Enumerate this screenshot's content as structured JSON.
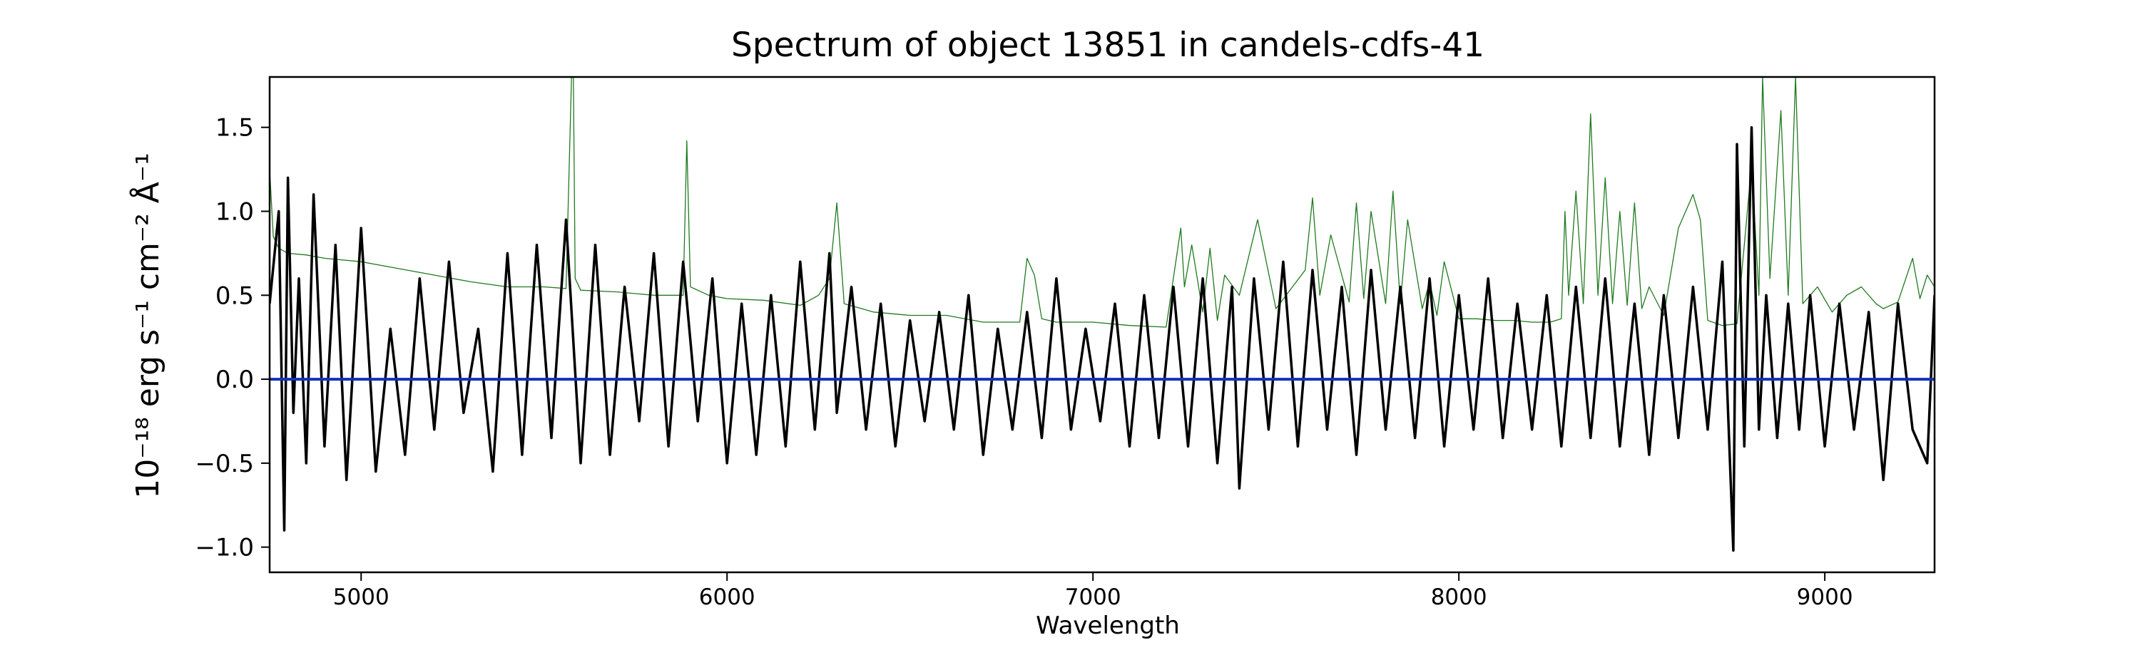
{
  "chart_data": {
    "type": "line",
    "title": "Spectrum of object 13851 in candels-cdfs-41",
    "xlabel": "Wavelength",
    "ylabel": "10⁻¹⁸ erg s⁻¹ cm⁻² Å⁻¹",
    "xlim": [
      4750,
      9300
    ],
    "ylim": [
      -1.15,
      1.8
    ],
    "x_ticks": [
      5000,
      6000,
      7000,
      8000,
      9000
    ],
    "y_ticks": [
      -1.0,
      -0.5,
      0.0,
      0.5,
      1.0,
      1.5
    ],
    "x_tick_labels": [
      "5000",
      "6000",
      "7000",
      "8000",
      "9000"
    ],
    "y_tick_labels": [
      "−1.0",
      "−0.5",
      "0.0",
      "0.5",
      "1.0",
      "1.5"
    ],
    "grid": false,
    "series": [
      {
        "role": "flux",
        "color": "#000000",
        "x": [
          4750,
          4775,
          4790,
          4800,
          4815,
          4830,
          4850,
          4870,
          4900,
          4930,
          4960,
          5000,
          5040,
          5080,
          5120,
          5160,
          5200,
          5240,
          5280,
          5320,
          5360,
          5400,
          5440,
          5480,
          5520,
          5560,
          5600,
          5640,
          5680,
          5720,
          5760,
          5800,
          5840,
          5880,
          5920,
          5960,
          6000,
          6040,
          6080,
          6120,
          6160,
          6200,
          6240,
          6280,
          6300,
          6340,
          6380,
          6420,
          6460,
          6500,
          6540,
          6580,
          6620,
          6660,
          6700,
          6740,
          6780,
          6820,
          6860,
          6900,
          6940,
          6980,
          7020,
          7060,
          7100,
          7140,
          7180,
          7220,
          7260,
          7300,
          7340,
          7380,
          7400,
          7440,
          7480,
          7520,
          7560,
          7600,
          7640,
          7680,
          7720,
          7760,
          7800,
          7840,
          7880,
          7920,
          7960,
          8000,
          8040,
          8080,
          8120,
          8160,
          8200,
          8240,
          8280,
          8320,
          8360,
          8400,
          8440,
          8480,
          8520,
          8560,
          8600,
          8640,
          8680,
          8720,
          8750,
          8760,
          8780,
          8800,
          8820,
          8840,
          8870,
          8900,
          8930,
          8960,
          9000,
          9040,
          9080,
          9120,
          9160,
          9200,
          9240,
          9280,
          9300
        ],
        "y": [
          0.45,
          1.0,
          -0.9,
          1.2,
          -0.2,
          0.6,
          -0.5,
          1.1,
          -0.4,
          0.8,
          -0.6,
          0.9,
          -0.55,
          0.3,
          -0.45,
          0.6,
          -0.3,
          0.7,
          -0.2,
          0.3,
          -0.55,
          0.75,
          -0.45,
          0.8,
          -0.35,
          0.95,
          -0.5,
          0.8,
          -0.45,
          0.55,
          -0.25,
          0.75,
          -0.4,
          0.7,
          -0.25,
          0.6,
          -0.5,
          0.45,
          -0.45,
          0.5,
          -0.4,
          0.7,
          -0.3,
          0.75,
          -0.2,
          0.55,
          -0.3,
          0.45,
          -0.4,
          0.35,
          -0.25,
          0.4,
          -0.3,
          0.5,
          -0.45,
          0.3,
          -0.3,
          0.4,
          -0.35,
          0.6,
          -0.3,
          0.3,
          -0.25,
          0.45,
          -0.4,
          0.5,
          -0.35,
          0.55,
          -0.4,
          0.6,
          -0.5,
          0.55,
          -0.65,
          0.6,
          -0.3,
          0.7,
          -0.4,
          0.65,
          -0.3,
          0.55,
          -0.45,
          0.65,
          -0.3,
          0.55,
          -0.35,
          0.6,
          -0.4,
          0.5,
          -0.3,
          0.6,
          -0.35,
          0.45,
          -0.3,
          0.5,
          -0.4,
          0.55,
          -0.35,
          0.6,
          -0.4,
          0.45,
          -0.45,
          0.5,
          -0.35,
          0.55,
          -0.3,
          0.7,
          -1.02,
          1.4,
          -0.4,
          1.5,
          -0.3,
          0.5,
          -0.35,
          0.45,
          -0.3,
          0.5,
          -0.4,
          0.45,
          -0.3,
          0.4,
          -0.6,
          0.45,
          -0.3,
          -0.5,
          0.5
        ]
      },
      {
        "role": "model",
        "color": "#1f7a1f",
        "x": [
          4750,
          4760,
          4775,
          4800,
          4850,
          4900,
          5000,
          5100,
          5200,
          5300,
          5400,
          5500,
          5560,
          5575,
          5580,
          5585,
          5600,
          5700,
          5800,
          5880,
          5890,
          5900,
          5950,
          6000,
          6100,
          6200,
          6250,
          6280,
          6300,
          6320,
          6400,
          6500,
          6600,
          6700,
          6800,
          6820,
          6840,
          6860,
          6900,
          7000,
          7100,
          7200,
          7240,
          7250,
          7270,
          7300,
          7320,
          7340,
          7360,
          7400,
          7450,
          7500,
          7580,
          7600,
          7620,
          7650,
          7700,
          7720,
          7740,
          7760,
          7800,
          7820,
          7840,
          7860,
          7900,
          7920,
          7940,
          7960,
          8000,
          8050,
          8100,
          8150,
          8200,
          8250,
          8280,
          8290,
          8300,
          8320,
          8340,
          8360,
          8380,
          8400,
          8420,
          8440,
          8460,
          8480,
          8500,
          8520,
          8560,
          8600,
          8640,
          8660,
          8680,
          8720,
          8760,
          8780,
          8800,
          8820,
          8830,
          8850,
          8880,
          8900,
          8920,
          8940,
          8980,
          9020,
          9060,
          9100,
          9140,
          9160,
          9200,
          9240,
          9260,
          9280,
          9300
        ],
        "y": [
          1.25,
          0.85,
          0.78,
          0.75,
          0.74,
          0.72,
          0.7,
          0.66,
          0.62,
          0.58,
          0.55,
          0.55,
          0.54,
          1.8,
          1.8,
          0.6,
          0.53,
          0.52,
          0.5,
          0.5,
          1.42,
          0.55,
          0.5,
          0.48,
          0.47,
          0.44,
          0.5,
          0.6,
          1.05,
          0.45,
          0.4,
          0.38,
          0.38,
          0.34,
          0.34,
          0.72,
          0.62,
          0.36,
          0.34,
          0.34,
          0.32,
          0.31,
          0.9,
          0.55,
          0.8,
          0.4,
          0.78,
          0.35,
          0.62,
          0.5,
          0.95,
          0.42,
          0.65,
          1.08,
          0.5,
          0.86,
          0.46,
          1.05,
          0.48,
          1.0,
          0.45,
          1.12,
          0.45,
          0.95,
          0.42,
          0.58,
          0.38,
          0.7,
          0.36,
          0.36,
          0.35,
          0.35,
          0.34,
          0.34,
          0.36,
          1.0,
          0.5,
          1.12,
          0.45,
          1.58,
          0.5,
          1.2,
          0.45,
          1.0,
          0.44,
          1.05,
          0.42,
          0.55,
          0.38,
          0.9,
          1.1,
          0.95,
          0.35,
          0.32,
          0.33,
          0.8,
          1.28,
          0.5,
          1.8,
          0.6,
          1.6,
          0.5,
          1.8,
          0.45,
          0.55,
          0.4,
          0.5,
          0.55,
          0.45,
          0.42,
          0.46,
          0.72,
          0.48,
          0.62,
          0.55
        ]
      },
      {
        "role": "zero",
        "color": "#1030c0",
        "x": [
          4750,
          9300
        ],
        "y": [
          0.0,
          0.0
        ]
      }
    ]
  }
}
